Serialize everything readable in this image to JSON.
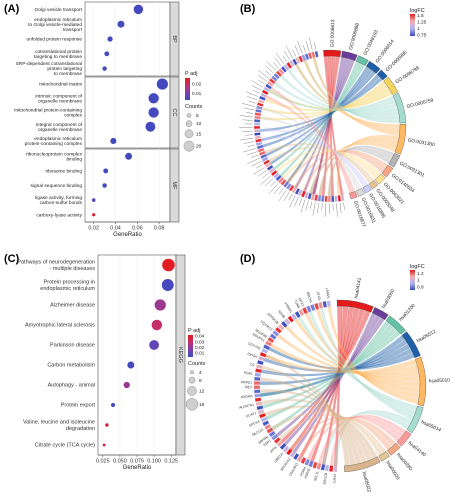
{
  "panels": {
    "A": {
      "letter": "(A)"
    },
    "B": {
      "letter": "(B)"
    },
    "C": {
      "letter": "(C)"
    },
    "D": {
      "letter": "(D)"
    }
  },
  "chart_data": [
    {
      "panel": "A",
      "type": "scatter",
      "xlabel": "GeneRatio",
      "xlim": [
        0.012,
        0.09
      ],
      "xticks": [
        0.02,
        0.04,
        0.06,
        0.08
      ],
      "facets": [
        {
          "name": "BP",
          "terms": [
            {
              "label": [
                "Golgi vesicle transport"
              ],
              "x": 0.061,
              "padj": 0.025,
              "count": 18
            },
            {
              "label": [
                "endoplasmic reticulum",
                "to Golgi vesicle-mediated",
                "transport"
              ],
              "x": 0.045,
              "padj": 0.025,
              "count": 12
            },
            {
              "label": [
                "unfolded protein response"
              ],
              "x": 0.035,
              "padj": 0.025,
              "count": 8
            },
            {
              "label": [
                "cotranslational protein",
                "targeting to membrane"
              ],
              "x": 0.032,
              "padj": 0.025,
              "count": 7
            },
            {
              "label": [
                "SRP-dependent cotranslational",
                "protein targeting",
                "to membrane"
              ],
              "x": 0.03,
              "padj": 0.025,
              "count": 6
            }
          ]
        },
        {
          "name": "CC",
          "terms": [
            {
              "label": [
                "mitochondrial matrix"
              ],
              "x": 0.083,
              "padj": 0.025,
              "count": 22
            },
            {
              "label": [
                "intrinsic component of",
                "organelle membrane"
              ],
              "x": 0.075,
              "padj": 0.025,
              "count": 20
            },
            {
              "label": [
                "mitochondrial protein-containing",
                "complex"
              ],
              "x": 0.075,
              "padj": 0.025,
              "count": 20
            },
            {
              "label": [
                "integral component of",
                "organelle membrane"
              ],
              "x": 0.072,
              "padj": 0.025,
              "count": 19
            },
            {
              "label": [
                "endoplasmic reticulum",
                "protein-containing complex"
              ],
              "x": 0.038,
              "padj": 0.025,
              "count": 10
            }
          ]
        },
        {
          "name": "MF",
          "terms": [
            {
              "label": [
                "ribonucleoprotein complex",
                "binding"
              ],
              "x": 0.052,
              "padj": 0.025,
              "count": 12
            },
            {
              "label": [
                "ribosome binding"
              ],
              "x": 0.031,
              "padj": 0.025,
              "count": 7
            },
            {
              "label": [
                "signal sequence binding"
              ],
              "x": 0.03,
              "padj": 0.025,
              "count": 6
            },
            {
              "label": [
                "ligase activity, forming",
                "carbon-sulfur bonds"
              ],
              "x": 0.02,
              "padj": 0.022,
              "count": 4
            },
            {
              "label": [
                "carboxy-lyase activity"
              ],
              "x": 0.02,
              "padj": 0.005,
              "count": 3
            }
          ]
        }
      ],
      "legend": {
        "padj_title": "P adj",
        "padj_ticks": [
          0.02,
          0.01
        ],
        "padj_range": [
          0.003,
          0.026
        ],
        "count_title": "Counts",
        "count_ticks": [
          5,
          10,
          15,
          20
        ]
      }
    },
    {
      "panel": "B",
      "type": "chord",
      "legend": {
        "title": "logFC",
        "ticks": [
          1.5,
          1.25,
          1.0,
          0.75
        ],
        "range": [
          0.7,
          1.55
        ]
      },
      "terms": [
        {
          "label": "GO:0006613",
          "weight": 8,
          "color": "#e41a1c"
        },
        {
          "label": "GO:0006888",
          "weight": 7,
          "color": "#6a3d9a"
        },
        {
          "label": "GO:0048193",
          "weight": 5,
          "color": "#66c2a5"
        },
        {
          "label": "GO:0006614",
          "weight": 6,
          "color": "#1f5fa8"
        },
        {
          "label": "GO:0006986",
          "weight": 4,
          "color": "#1f5fa8"
        },
        {
          "label": "GO:0098798",
          "weight": 8,
          "color": "#f4d35e"
        },
        {
          "label": "GO:0005759",
          "weight": 14,
          "color": "#a6dcd0"
        },
        {
          "label": "GO:0031300",
          "weight": 14,
          "color": "#fdb863"
        },
        {
          "label": "GO:0031301",
          "weight": 6,
          "color": "#b3b3b3"
        },
        {
          "label": "GO:0140534",
          "weight": 5,
          "color": "#f4a582"
        },
        {
          "label": "GO:0043021",
          "weight": 4,
          "color": "#fee090"
        },
        {
          "label": "GO:0005048",
          "weight": 3,
          "color": "#e5c494"
        },
        {
          "label": "GO:0016885",
          "weight": 3,
          "color": "#ccccff"
        },
        {
          "label": "GO:0016831",
          "weight": 3,
          "color": "#d9d9d9"
        },
        {
          "label": "GO:0016877",
          "weight": 3,
          "color": "#fb9a99"
        }
      ]
    },
    {
      "panel": "C",
      "type": "scatter",
      "xlabel": "GeneRatio",
      "xlim": [
        0.018,
        0.132
      ],
      "xticks": [
        0.025,
        0.05,
        0.075,
        0.1,
        0.125
      ],
      "xtick_labels": [
        "0.025",
        "0.050",
        "0.075",
        "0.100",
        "0.125"
      ],
      "facet": "KEGG",
      "terms": [
        {
          "label": [
            "Pathways of neurodegeneration",
            "- multiple diseases"
          ],
          "x": 0.121,
          "padj": 0.004,
          "count": 17
        },
        {
          "label": [
            "Protein processing in",
            "endoplasmic reticulum"
          ],
          "x": 0.12,
          "padj": 0.04,
          "count": 16
        },
        {
          "label": [
            "Alzheimer disease"
          ],
          "x": 0.109,
          "padj": 0.023,
          "count": 15
        },
        {
          "label": [
            "Amyotrophic lateral sclerosis"
          ],
          "x": 0.104,
          "padj": 0.015,
          "count": 14
        },
        {
          "label": [
            "Parkinson disease"
          ],
          "x": 0.1,
          "padj": 0.035,
          "count": 13
        },
        {
          "label": [
            "Carbon metabolism"
          ],
          "x": 0.066,
          "padj": 0.04,
          "count": 9
        },
        {
          "label": [
            "Autophagy - animal"
          ],
          "x": 0.06,
          "padj": 0.024,
          "count": 8
        },
        {
          "label": [
            "Protein export"
          ],
          "x": 0.04,
          "padj": 0.04,
          "count": 5
        },
        {
          "label": [
            "Valine, leucine and isoleucine",
            "degradation"
          ],
          "x": 0.031,
          "padj": 0.01,
          "count": 4
        },
        {
          "label": [
            "Citrate cycle (TCA cycle)"
          ],
          "x": 0.027,
          "padj": 0.005,
          "count": 3
        }
      ],
      "legend": {
        "padj_title": "P adj",
        "padj_ticks": [
          0.04,
          0.03,
          0.02,
          0.01
        ],
        "padj_range": [
          0.003,
          0.042
        ],
        "count_title": "Counts",
        "count_ticks": [
          4,
          8,
          12,
          16
        ]
      }
    },
    {
      "panel": "D",
      "type": "chord",
      "legend": {
        "title": "logFC",
        "ticks": [
          1.2,
          1.0,
          0.8
        ],
        "range": [
          0.7,
          1.3
        ]
      },
      "terms": [
        {
          "label": "hsa04141",
          "weight": 12,
          "color": "#e41a1c"
        },
        {
          "label": "hsa03060",
          "weight": 5,
          "color": "#6a3d9a"
        },
        {
          "label": "hsa01200",
          "weight": 7,
          "color": "#66c2a5"
        },
        {
          "label": "hsa05012",
          "weight": 9,
          "color": "#1f5fa8"
        },
        {
          "label": "hsa05010",
          "weight": 16,
          "color": "#fdb863"
        },
        {
          "label": "hsa05014",
          "weight": 9,
          "color": "#a6dcd0"
        },
        {
          "label": "hsa04140",
          "weight": 5,
          "color": "#fb9a99"
        },
        {
          "label": "hsa00280",
          "weight": 4,
          "color": "#f4a582"
        },
        {
          "label": "hsa00020",
          "weight": 3,
          "color": "#e5c494"
        },
        {
          "label": "hsa05022",
          "weight": 12,
          "color": "#d9b38c"
        }
      ],
      "genes": [
        "CANX",
        "ERO1B",
        "SEL1L",
        "HSPA5",
        "PDIA4",
        "DNAJB11",
        "SEC61A1",
        "UBE2J1",
        "ATF6",
        "SSR1",
        "SRPRB",
        "SEC11A",
        "SPCS3",
        "ACAT1",
        "ALDH7A1",
        "HADHA",
        "ME2",
        "PRPS1",
        "PGK1",
        "CS",
        "IDH3A",
        "COX7A2",
        "NDUFS1",
        "NDUFB9",
        "UQCRC2",
        "ATP5F1B",
        "SDHB",
        "PSMD1",
        "TUBB",
        "GPX1",
        "BECN1",
        "ATG5",
        "LAMP1"
      ]
    }
  ]
}
